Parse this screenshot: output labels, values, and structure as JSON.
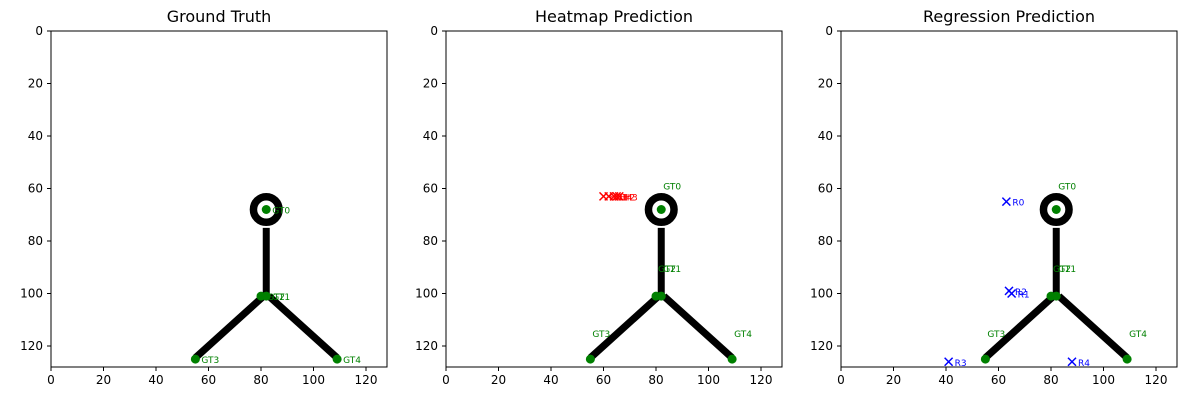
{
  "chart_data": [
    {
      "type": "scatter",
      "title": "Ground Truth",
      "xlabel": "",
      "ylabel": "",
      "xlim": [
        0,
        128
      ],
      "ylim": [
        128,
        0
      ],
      "xticks": [
        0,
        20,
        40,
        60,
        80,
        100,
        120
      ],
      "yticks": [
        0,
        20,
        40,
        60,
        80,
        100,
        120
      ],
      "grid": false,
      "background_image": "stick-figure",
      "series": [
        {
          "marker": "circle",
          "color": "#008000",
          "points": [
            {
              "label": "GT0",
              "x": 82,
              "y": 68
            },
            {
              "label": "GT1",
              "x": 82,
              "y": 101
            },
            {
              "label": "GT2",
              "x": 80,
              "y": 101
            },
            {
              "label": "GT3",
              "x": 55,
              "y": 125
            },
            {
              "label": "GT4",
              "x": 109,
              "y": 125
            }
          ]
        }
      ]
    },
    {
      "type": "scatter",
      "title": "Heatmap Prediction",
      "xlabel": "",
      "ylabel": "",
      "xlim": [
        0,
        128
      ],
      "ylim": [
        128,
        0
      ],
      "xticks": [
        0,
        20,
        40,
        60,
        80,
        100,
        120
      ],
      "yticks": [
        0,
        20,
        40,
        60,
        80,
        100,
        120
      ],
      "grid": false,
      "background_image": "stick-figure",
      "series": [
        {
          "marker": "circle",
          "color": "#008000",
          "points": [
            {
              "label": "GT0",
              "x": 82,
              "y": 68
            },
            {
              "label": "GT1",
              "x": 82,
              "y": 101
            },
            {
              "label": "GT2",
              "x": 80,
              "y": 101
            },
            {
              "label": "GT3",
              "x": 55,
              "y": 125
            },
            {
              "label": "GT4",
              "x": 109,
              "y": 125
            }
          ]
        },
        {
          "marker": "x",
          "color": "#ff0000",
          "points": [
            {
              "label": "H0",
              "x": 60,
              "y": 63
            },
            {
              "label": "H1",
              "x": 62,
              "y": 63
            },
            {
              "label": "H2",
              "x": 65,
              "y": 63
            },
            {
              "label": "H3",
              "x": 66,
              "y": 63
            },
            {
              "label": "H4",
              "x": 64,
              "y": 63
            }
          ]
        }
      ]
    },
    {
      "type": "scatter",
      "title": "Regression Prediction",
      "xlabel": "",
      "ylabel": "",
      "xlim": [
        0,
        128
      ],
      "ylim": [
        128,
        0
      ],
      "xticks": [
        0,
        20,
        40,
        60,
        80,
        100,
        120
      ],
      "yticks": [
        0,
        20,
        40,
        60,
        80,
        100,
        120
      ],
      "grid": false,
      "background_image": "stick-figure",
      "series": [
        {
          "marker": "circle",
          "color": "#008000",
          "points": [
            {
              "label": "GT0",
              "x": 82,
              "y": 68
            },
            {
              "label": "GT1",
              "x": 82,
              "y": 101
            },
            {
              "label": "GT2",
              "x": 80,
              "y": 101
            },
            {
              "label": "GT3",
              "x": 55,
              "y": 125
            },
            {
              "label": "GT4",
              "x": 109,
              "y": 125
            }
          ]
        },
        {
          "marker": "x",
          "color": "#0000ff",
          "points": [
            {
              "label": "R0",
              "x": 63,
              "y": 65
            },
            {
              "label": "R1",
              "x": 65,
              "y": 100
            },
            {
              "label": "R2",
              "x": 64,
              "y": 99
            },
            {
              "label": "R3",
              "x": 41,
              "y": 126
            },
            {
              "label": "R4",
              "x": 88,
              "y": 126
            }
          ]
        }
      ]
    }
  ]
}
